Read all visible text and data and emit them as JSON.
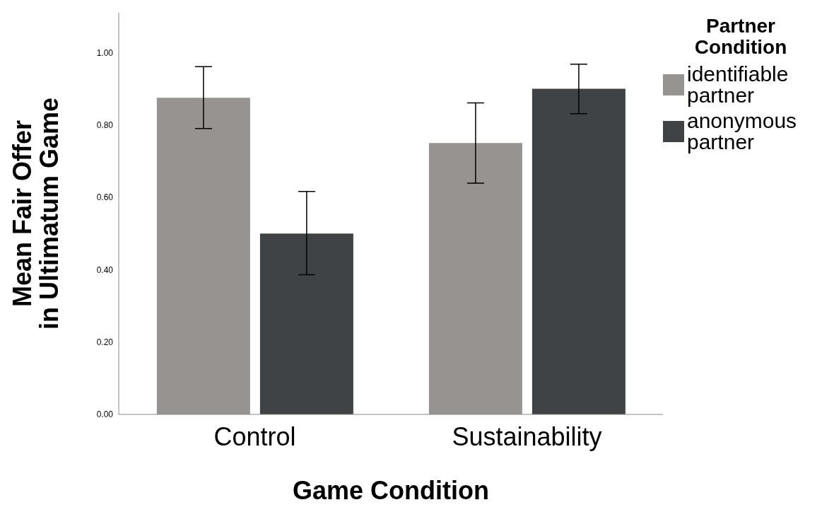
{
  "chart_data": {
    "type": "bar",
    "xlabel": "Game Condition",
    "ylabel": "Mean Fair Offer in Ultimatum Game",
    "legend_title": "Partner Condition",
    "categories": [
      "Control",
      "Sustainability"
    ],
    "series": [
      {
        "name": "identifiable partner",
        "color": "#969391",
        "values": [
          0.875,
          0.75
        ],
        "errors": [
          [
            0.79,
            0.961
          ],
          [
            0.639,
            0.861
          ]
        ]
      },
      {
        "name": "anonymous partner",
        "color": "#404345",
        "values": [
          0.5,
          0.9
        ],
        "errors": [
          [
            0.386,
            0.616
          ],
          [
            0.831,
            0.968
          ]
        ]
      }
    ],
    "ylim": [
      0,
      1.11
    ],
    "yticks": [
      {
        "value": 0,
        "label": "0.00"
      },
      {
        "value": 0.2,
        "label": "0.20"
      },
      {
        "value": 0.4,
        "label": "0.40"
      },
      {
        "value": 0.6,
        "label": "0.60"
      },
      {
        "value": 0.8,
        "label": "0.80"
      },
      {
        "value": 1,
        "label": "1.00"
      }
    ],
    "grid": false,
    "legend": "top right"
  }
}
